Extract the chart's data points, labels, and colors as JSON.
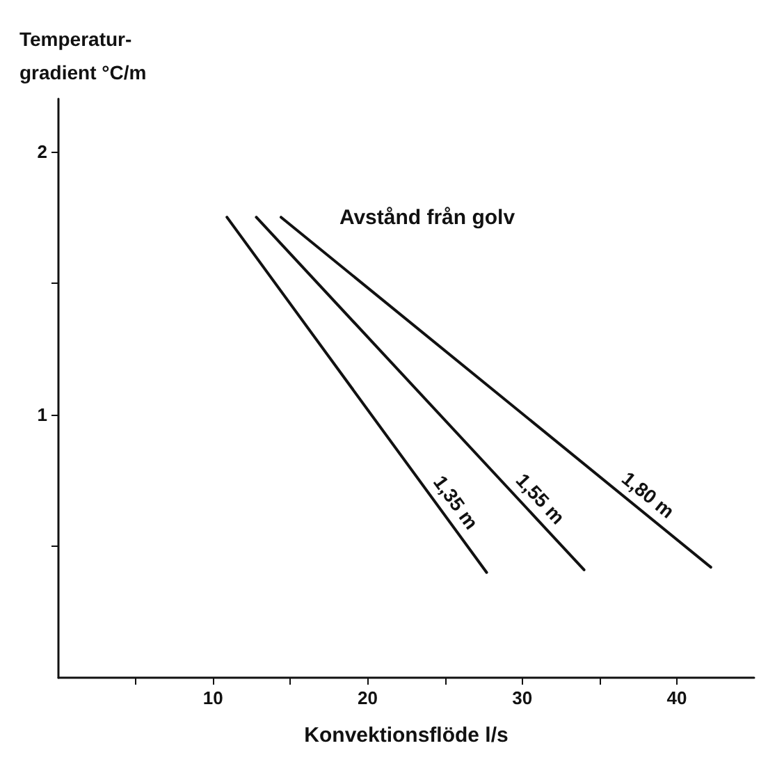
{
  "chart_data": {
    "type": "line",
    "xlabel": "Konvektionsflöde l/s",
    "ylabel": "Temperatur-\ngradient °C/m",
    "annotations": [
      "Avstånd från golv"
    ],
    "xlim": [
      0,
      45
    ],
    "xticks": [
      {
        "value": 5,
        "label": null
      },
      10,
      {
        "value": 15,
        "label": null
      },
      20,
      {
        "value": 25,
        "label": null
      },
      30,
      {
        "value": 35,
        "label": null
      },
      40
    ],
    "ylim": [
      0,
      2.2
    ],
    "yticks": [
      {
        "value": 0.5,
        "label": null
      },
      1,
      {
        "value": 1.5,
        "label": null
      },
      2
    ],
    "grid": false,
    "legend": false,
    "marker": "none",
    "line_style": "solid",
    "series": [
      {
        "name": "1,35 m",
        "color": "#111111",
        "x": [
          10.9,
          27.7
        ],
        "values": [
          1.75,
          0.4
        ]
      },
      {
        "name": "1,55 m",
        "color": "#111111",
        "x": [
          12.8,
          34.0
        ],
        "values": [
          1.75,
          0.41
        ]
      },
      {
        "name": "1,80 m",
        "color": "#111111",
        "x": [
          14.4,
          42.2
        ],
        "values": [
          1.75,
          0.42
        ]
      }
    ]
  }
}
